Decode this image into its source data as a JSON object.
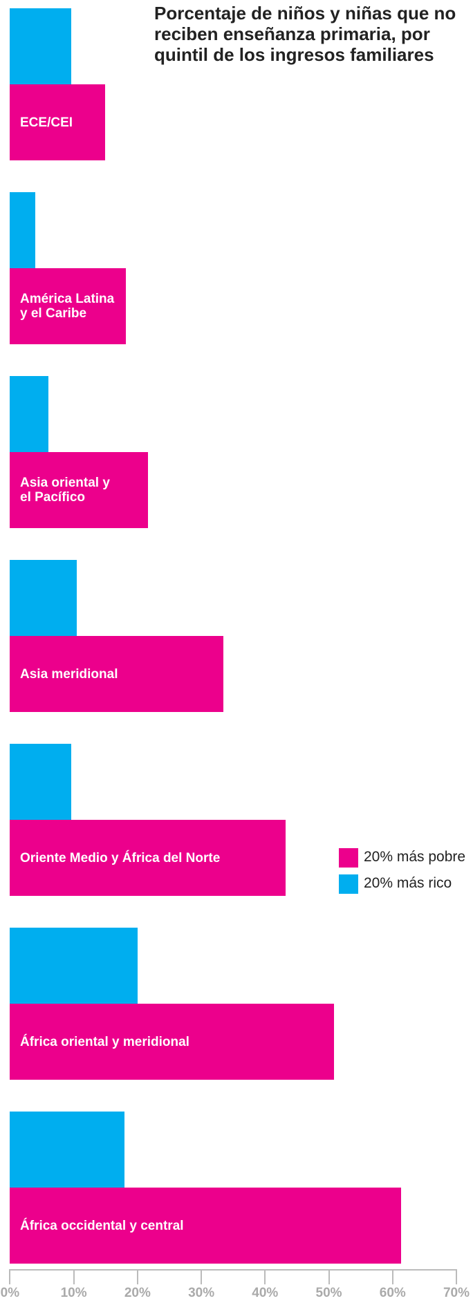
{
  "chart_data": {
    "type": "bar",
    "orientation": "horizontal",
    "title": "Porcentaje de niños y niñas que no reciben enseñanza primaria, por quintil de los ingresos familiares",
    "categories": [
      "ECE/CEI",
      "América Latina\ny el Caribe",
      "Asia oriental y\nel Pacífico",
      "Asia meridional",
      "Oriente Medio y África del Norte",
      "África oriental y meridional",
      "África occidental y central"
    ],
    "series": [
      {
        "name": "20% más rico",
        "color": "#00aeef",
        "values": [
          9.6,
          4,
          6,
          10.5,
          9.6,
          20,
          18
        ]
      },
      {
        "name": "20% más pobre",
        "color": "#ec008c",
        "values": [
          14.9,
          18.2,
          21.6,
          33.5,
          43.2,
          50.8,
          61.3
        ]
      }
    ],
    "xlim": [
      0,
      70
    ],
    "xticks": [
      {
        "value": 0,
        "label": "0%"
      },
      {
        "value": 10,
        "label": "10%"
      },
      {
        "value": 20,
        "label": "20%"
      },
      {
        "value": 30,
        "label": "30%"
      },
      {
        "value": 40,
        "label": "40%"
      },
      {
        "value": 50,
        "label": "50%"
      },
      {
        "value": 60,
        "label": "60%"
      },
      {
        "value": 70,
        "label": "70%"
      }
    ],
    "legend": "right"
  }
}
